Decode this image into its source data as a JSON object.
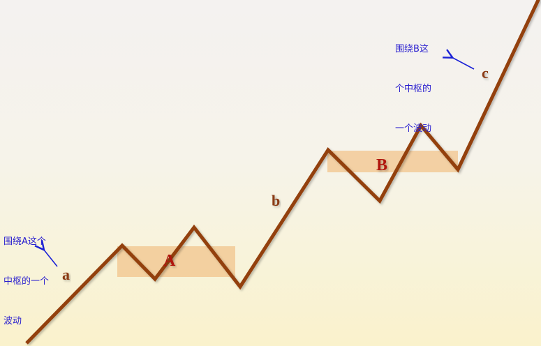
{
  "colors": {
    "price_line": "#93410f",
    "center_box": "#f2c48c",
    "arrow": "#1b22d6",
    "note_text": "#2a1fcf",
    "segment_label": "#8b3a12",
    "center_label": "#b0160e"
  },
  "segments": {
    "a": "a",
    "b": "b",
    "c": "c"
  },
  "centers": {
    "A": "A",
    "B": "B"
  },
  "notes": {
    "left": {
      "line1": "围绕A这个",
      "line2": "中枢的一个",
      "line3": "波动"
    },
    "right": {
      "line1": "围绕B这",
      "line2": "个中枢的",
      "line3": "一个波动"
    }
  }
}
